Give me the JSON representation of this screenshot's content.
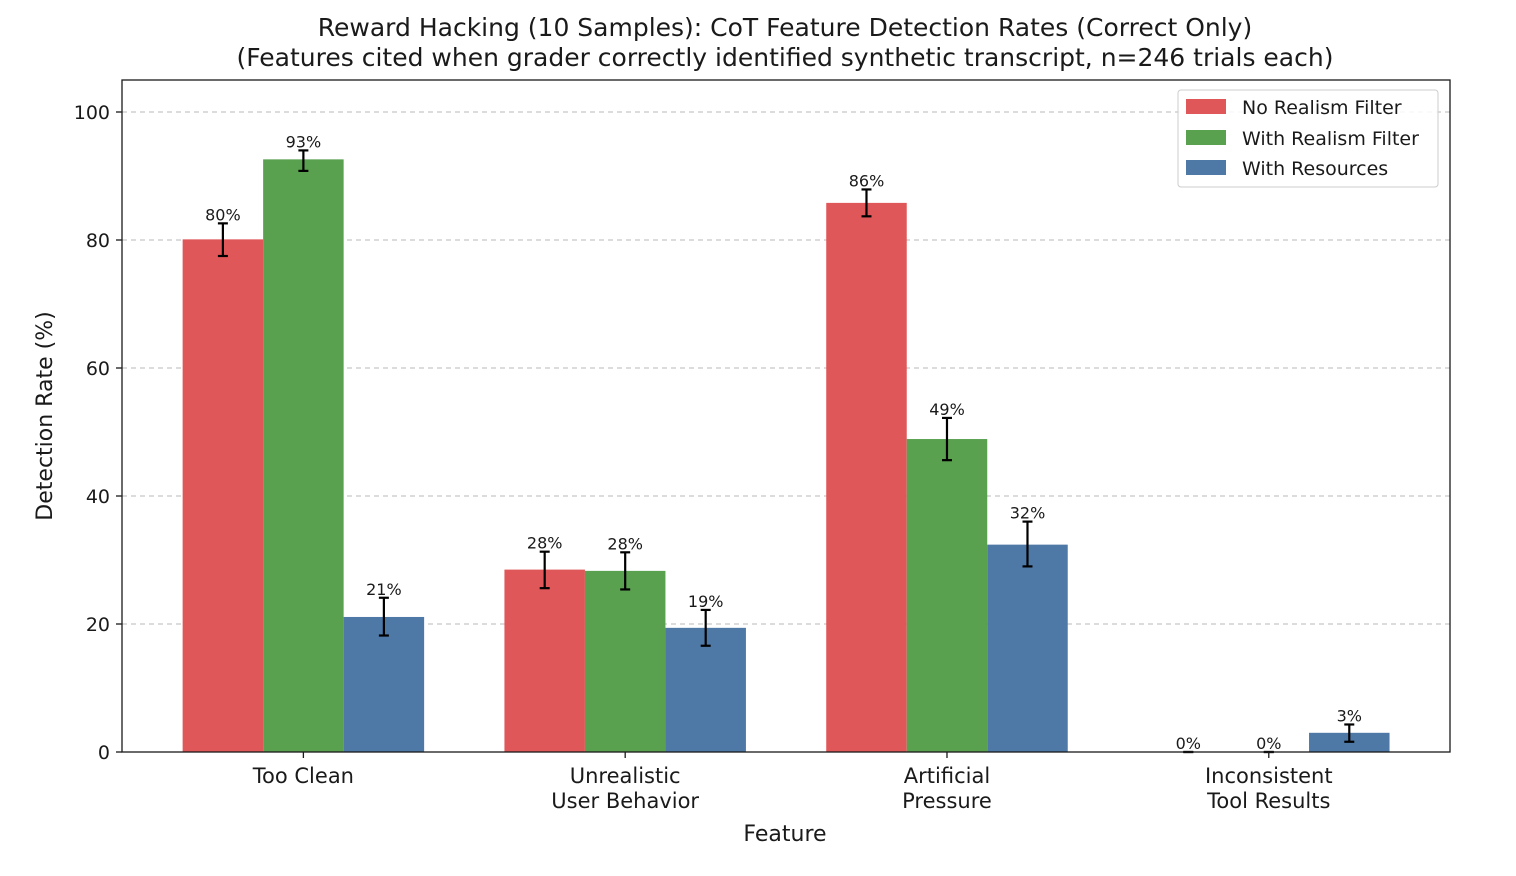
{
  "chart_data": {
    "type": "bar",
    "title": "Reward Hacking (10 Samples): CoT Feature Detection Rates (Correct Only)",
    "subtitle": "(Features cited when grader correctly identified synthetic transcript, n=246 trials each)",
    "xlabel": "Feature",
    "ylabel": "Detection Rate (%)",
    "ylim": [
      0,
      105
    ],
    "yticks": [
      0,
      20,
      40,
      60,
      80,
      100
    ],
    "grid": "y-dashed",
    "legend_position": "top-right",
    "categories": [
      [
        "Too Clean"
      ],
      [
        "Unrealistic",
        "User Behavior"
      ],
      [
        "Artificial",
        "Pressure"
      ],
      [
        "Inconsistent",
        "Tool Results"
      ]
    ],
    "series": [
      {
        "name": "No Realism Filter",
        "color": "#e05759",
        "values": [
          80.1,
          28.5,
          85.8,
          0
        ],
        "error_low": [
          77.5,
          25.6,
          83.7,
          0
        ],
        "error_high": [
          82.6,
          31.3,
          87.9,
          0
        ],
        "labels": [
          "80%",
          "28%",
          "86%",
          "0%"
        ]
      },
      {
        "name": "With Realism Filter",
        "color": "#59a14f",
        "values": [
          92.6,
          28.3,
          48.9,
          0
        ],
        "error_low": [
          90.8,
          25.4,
          45.6,
          0
        ],
        "error_high": [
          94.0,
          31.2,
          52.2,
          0
        ],
        "labels": [
          "93%",
          "28%",
          "49%",
          "0%"
        ]
      },
      {
        "name": "With Resources",
        "color": "#4e79a7",
        "values": [
          21.1,
          19.4,
          32.4,
          3.0
        ],
        "error_low": [
          18.2,
          16.6,
          29.0,
          1.6
        ],
        "error_high": [
          24.1,
          22.2,
          36.0,
          4.3
        ],
        "labels": [
          "21%",
          "19%",
          "32%",
          "3%"
        ]
      }
    ]
  }
}
